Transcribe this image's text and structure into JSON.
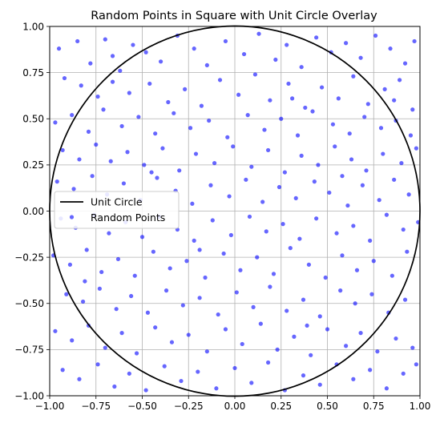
{
  "chart_data": {
    "type": "scatter",
    "title": "Random Points in Square with Unit Circle Overlay",
    "xlabel": "",
    "ylabel": "",
    "xlim": [
      -1.0,
      1.0
    ],
    "ylim": [
      -1.0,
      1.0
    ],
    "grid": true,
    "legend_position": "center-left",
    "x_ticks": [
      "−1.00",
      "−0.75",
      "−0.50",
      "−0.25",
      "0.00",
      "0.25",
      "0.50",
      "0.75",
      "1.00"
    ],
    "y_ticks": [
      "−1.00",
      "−0.75",
      "−0.50",
      "−0.25",
      "0.00",
      "0.25",
      "0.50",
      "0.75",
      "1.00"
    ],
    "x_tick_values": [
      -1.0,
      -0.75,
      -0.5,
      -0.25,
      0.0,
      0.25,
      0.5,
      0.75,
      1.0
    ],
    "y_tick_values": [
      -1.0,
      -0.75,
      -0.5,
      -0.25,
      0.0,
      0.25,
      0.5,
      0.75,
      1.0
    ],
    "circle": {
      "name": "Unit Circle",
      "center": [
        0,
        0
      ],
      "radius": 1,
      "color": "#000000"
    },
    "series": [
      {
        "name": "Random Points",
        "color": "#0000ff",
        "points": [
          [
            -0.95,
            0.88
          ],
          [
            -0.85,
            0.92
          ],
          [
            -0.78,
            0.8
          ],
          [
            -0.7,
            0.93
          ],
          [
            -0.62,
            0.76
          ],
          [
            -0.55,
            0.9
          ],
          [
            -0.48,
            0.86
          ],
          [
            -0.4,
            0.81
          ],
          [
            -0.31,
            0.95
          ],
          [
            -0.22,
            0.88
          ],
          [
            -0.15,
            0.79
          ],
          [
            -0.05,
            0.92
          ],
          [
            0.05,
            0.85
          ],
          [
            0.13,
            0.96
          ],
          [
            0.22,
            0.82
          ],
          [
            0.28,
            0.9
          ],
          [
            0.36,
            0.78
          ],
          [
            0.44,
            0.94
          ],
          [
            0.52,
            0.86
          ],
          [
            0.6,
            0.91
          ],
          [
            0.68,
            0.83
          ],
          [
            0.76,
            0.95
          ],
          [
            0.84,
            0.88
          ],
          [
            0.92,
            0.8
          ],
          [
            0.97,
            0.92
          ],
          [
            -0.92,
            0.72
          ],
          [
            -0.83,
            0.68
          ],
          [
            -0.74,
            0.62
          ],
          [
            -0.66,
            0.7
          ],
          [
            -0.57,
            0.64
          ],
          [
            -0.46,
            0.69
          ],
          [
            -0.36,
            0.59
          ],
          [
            -0.27,
            0.66
          ],
          [
            -0.18,
            0.57
          ],
          [
            -0.08,
            0.71
          ],
          [
            0.02,
            0.63
          ],
          [
            0.11,
            0.74
          ],
          [
            0.19,
            0.6
          ],
          [
            0.29,
            0.69
          ],
          [
            0.38,
            0.56
          ],
          [
            0.47,
            0.67
          ],
          [
            0.56,
            0.61
          ],
          [
            0.64,
            0.73
          ],
          [
            0.72,
            0.58
          ],
          [
            0.81,
            0.66
          ],
          [
            0.89,
            0.71
          ],
          [
            0.96,
            0.55
          ],
          [
            -0.97,
            0.48
          ],
          [
            -0.88,
            0.52
          ],
          [
            -0.79,
            0.43
          ],
          [
            -0.71,
            0.55
          ],
          [
            -0.61,
            0.46
          ],
          [
            -0.52,
            0.51
          ],
          [
            -0.43,
            0.42
          ],
          [
            -0.33,
            0.53
          ],
          [
            -0.24,
            0.45
          ],
          [
            -0.14,
            0.49
          ],
          [
            -0.04,
            0.4
          ],
          [
            0.07,
            0.52
          ],
          [
            0.16,
            0.44
          ],
          [
            0.25,
            0.5
          ],
          [
            0.34,
            0.41
          ],
          [
            0.42,
            0.54
          ],
          [
            0.53,
            0.47
          ],
          [
            0.62,
            0.42
          ],
          [
            0.7,
            0.51
          ],
          [
            0.79,
            0.45
          ],
          [
            0.87,
            0.49
          ],
          [
            0.95,
            0.41
          ],
          [
            -0.93,
            0.33
          ],
          [
            -0.84,
            0.28
          ],
          [
            -0.75,
            0.36
          ],
          [
            -0.67,
            0.27
          ],
          [
            -0.58,
            0.32
          ],
          [
            -0.49,
            0.25
          ],
          [
            -0.39,
            0.34
          ],
          [
            -0.3,
            0.22
          ],
          [
            -0.21,
            0.31
          ],
          [
            -0.11,
            0.26
          ],
          [
            -0.01,
            0.35
          ],
          [
            0.09,
            0.24
          ],
          [
            0.18,
            0.33
          ],
          [
            0.27,
            0.21
          ],
          [
            0.36,
            0.3
          ],
          [
            0.45,
            0.25
          ],
          [
            0.54,
            0.35
          ],
          [
            0.63,
            0.28
          ],
          [
            0.71,
            0.22
          ],
          [
            0.8,
            0.31
          ],
          [
            0.9,
            0.26
          ],
          [
            0.98,
            0.34
          ],
          [
            -0.96,
            0.16
          ],
          [
            -0.87,
            0.12
          ],
          [
            -0.77,
            0.19
          ],
          [
            -0.69,
            0.09
          ],
          [
            -0.6,
            0.15
          ],
          [
            -0.51,
            0.06
          ],
          [
            -0.42,
            0.18
          ],
          [
            -0.32,
            0.11
          ],
          [
            -0.23,
            0.04
          ],
          [
            -0.13,
            0.14
          ],
          [
            -0.03,
            0.08
          ],
          [
            0.06,
            0.17
          ],
          [
            0.15,
            0.05
          ],
          [
            0.24,
            0.13
          ],
          [
            0.33,
            0.07
          ],
          [
            0.43,
            0.16
          ],
          [
            0.51,
            0.1
          ],
          [
            0.61,
            0.03
          ],
          [
            0.69,
            0.14
          ],
          [
            0.78,
            0.06
          ],
          [
            0.86,
            0.17
          ],
          [
            0.94,
            0.09
          ],
          [
            -0.94,
            -0.04
          ],
          [
            -0.86,
            -0.09
          ],
          [
            -0.76,
            -0.02
          ],
          [
            -0.68,
            -0.12
          ],
          [
            -0.59,
            -0.06
          ],
          [
            -0.5,
            -0.14
          ],
          [
            -0.41,
            -0.03
          ],
          [
            -0.31,
            -0.1
          ],
          [
            -0.22,
            -0.16
          ],
          [
            -0.12,
            -0.05
          ],
          [
            -0.02,
            -0.13
          ],
          [
            0.08,
            -0.03
          ],
          [
            0.17,
            -0.11
          ],
          [
            0.26,
            -0.07
          ],
          [
            0.35,
            -0.15
          ],
          [
            0.44,
            -0.04
          ],
          [
            0.55,
            -0.12
          ],
          [
            0.64,
            -0.08
          ],
          [
            0.73,
            -0.16
          ],
          [
            0.82,
            -0.02
          ],
          [
            0.91,
            -0.1
          ],
          [
            0.99,
            -0.06
          ],
          [
            -0.98,
            -0.24
          ],
          [
            -0.89,
            -0.29
          ],
          [
            -0.8,
            -0.21
          ],
          [
            -0.72,
            -0.33
          ],
          [
            -0.63,
            -0.26
          ],
          [
            -0.54,
            -0.35
          ],
          [
            -0.44,
            -0.22
          ],
          [
            -0.35,
            -0.31
          ],
          [
            -0.26,
            -0.27
          ],
          [
            -0.16,
            -0.36
          ],
          [
            -0.06,
            -0.23
          ],
          [
            0.03,
            -0.32
          ],
          [
            0.12,
            -0.25
          ],
          [
            0.21,
            -0.34
          ],
          [
            0.3,
            -0.2
          ],
          [
            0.4,
            -0.29
          ],
          [
            0.49,
            -0.36
          ],
          [
            0.58,
            -0.24
          ],
          [
            0.66,
            -0.32
          ],
          [
            0.75,
            -0.27
          ],
          [
            0.85,
            -0.35
          ],
          [
            0.93,
            -0.22
          ],
          [
            -0.91,
            -0.45
          ],
          [
            -0.82,
            -0.49
          ],
          [
            -0.73,
            -0.42
          ],
          [
            -0.64,
            -0.53
          ],
          [
            -0.56,
            -0.46
          ],
          [
            -0.47,
            -0.55
          ],
          [
            -0.37,
            -0.43
          ],
          [
            -0.28,
            -0.51
          ],
          [
            -0.19,
            -0.47
          ],
          [
            -0.09,
            -0.56
          ],
          [
            0.01,
            -0.44
          ],
          [
            0.1,
            -0.52
          ],
          [
            0.19,
            -0.41
          ],
          [
            0.28,
            -0.54
          ],
          [
            0.37,
            -0.48
          ],
          [
            0.46,
            -0.57
          ],
          [
            0.57,
            -0.43
          ],
          [
            0.65,
            -0.5
          ],
          [
            0.74,
            -0.45
          ],
          [
            0.83,
            -0.55
          ],
          [
            0.92,
            -0.48
          ],
          [
            -0.97,
            -0.65
          ],
          [
            -0.88,
            -0.7
          ],
          [
            -0.79,
            -0.62
          ],
          [
            -0.7,
            -0.74
          ],
          [
            -0.61,
            -0.66
          ],
          [
            -0.53,
            -0.77
          ],
          [
            -0.43,
            -0.63
          ],
          [
            -0.34,
            -0.71
          ],
          [
            -0.25,
            -0.67
          ],
          [
            -0.15,
            -0.76
          ],
          [
            -0.05,
            -0.64
          ],
          [
            0.04,
            -0.72
          ],
          [
            0.14,
            -0.61
          ],
          [
            0.23,
            -0.75
          ],
          [
            0.32,
            -0.68
          ],
          [
            0.41,
            -0.78
          ],
          [
            0.5,
            -0.64
          ],
          [
            0.6,
            -0.73
          ],
          [
            0.68,
            -0.66
          ],
          [
            0.77,
            -0.76
          ],
          [
            0.87,
            -0.69
          ],
          [
            0.96,
            -0.74
          ],
          [
            -0.93,
            -0.86
          ],
          [
            -0.84,
            -0.91
          ],
          [
            -0.74,
            -0.83
          ],
          [
            -0.65,
            -0.95
          ],
          [
            -0.57,
            -0.88
          ],
          [
            -0.48,
            -0.97
          ],
          [
            -0.38,
            -0.84
          ],
          [
            -0.29,
            -0.92
          ],
          [
            -0.2,
            -0.87
          ],
          [
            -0.1,
            -0.96
          ],
          [
            0.0,
            -0.85
          ],
          [
            0.09,
            -0.93
          ],
          [
            0.18,
            -0.82
          ],
          [
            0.27,
            -0.97
          ],
          [
            0.37,
            -0.89
          ],
          [
            0.46,
            -0.94
          ],
          [
            0.55,
            -0.83
          ],
          [
            0.64,
            -0.91
          ],
          [
            0.73,
            -0.86
          ],
          [
            0.82,
            -0.96
          ],
          [
            0.91,
            -0.88
          ],
          [
            0.98,
            -0.83
          ],
          [
            -0.66,
            0.84
          ],
          [
            0.31,
            0.61
          ],
          [
            -0.45,
            0.21
          ],
          [
            0.58,
            0.19
          ],
          [
            -0.19,
            -0.21
          ],
          [
            0.39,
            -0.62
          ],
          [
            -0.81,
            -0.38
          ],
          [
            0.86,
            0.6
          ]
        ]
      }
    ]
  }
}
